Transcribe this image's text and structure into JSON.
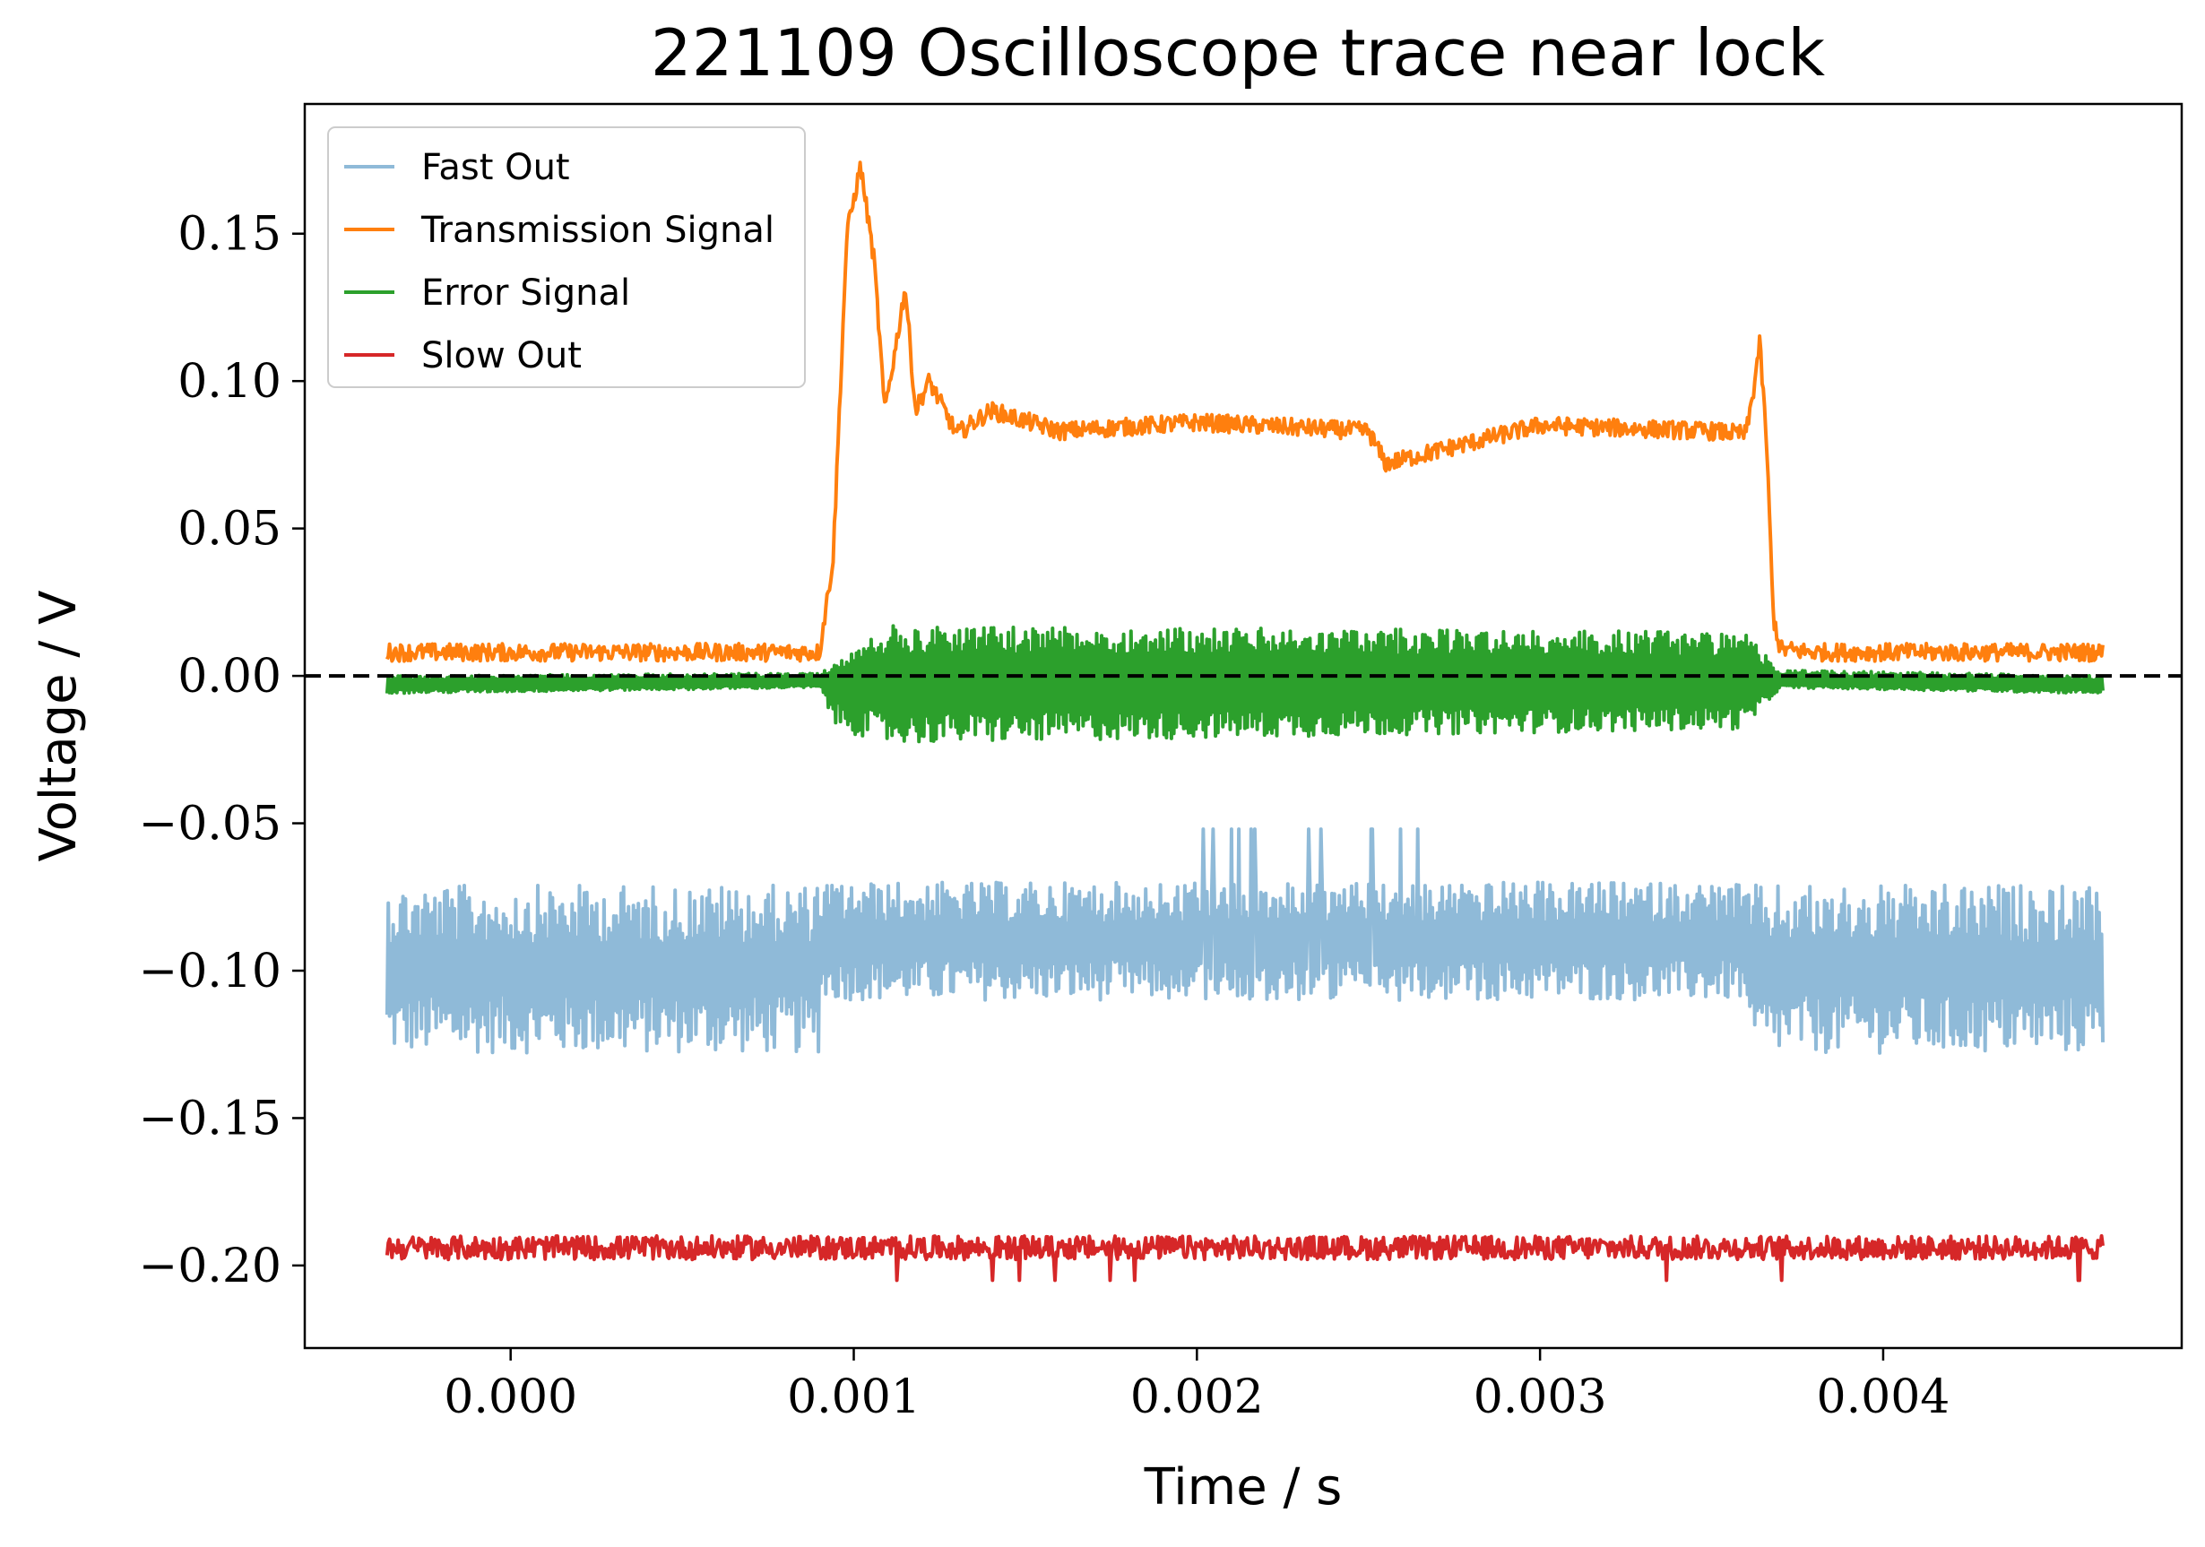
{
  "chart_data": {
    "type": "line",
    "title": "221109 Oscilloscope trace near lock",
    "xlabel": "Time / s",
    "ylabel": "Voltage / V",
    "xlim": [
      -0.0006,
      0.00487
    ],
    "ylim": [
      -0.228,
      0.194
    ],
    "xticks": [
      0.0,
      0.001,
      0.002,
      0.003,
      0.004
    ],
    "xtick_labels": [
      "0.000",
      "0.001",
      "0.002",
      "0.003",
      "0.004"
    ],
    "yticks": [
      0.15,
      0.1,
      0.05,
      0.0,
      -0.05,
      -0.1,
      -0.15,
      -0.2
    ],
    "ytick_labels": [
      "0.15",
      "0.10",
      "0.05",
      "0.00",
      "−0.05",
      "−0.10",
      "−0.15",
      "−0.20"
    ],
    "grid": false,
    "legend_position": "top-left",
    "reference_line": {
      "y": 0.0,
      "style": "dashed",
      "color": "#000000"
    },
    "series": [
      {
        "name": "Fast Out",
        "color": "#8fbad8",
        "style": "telegraph noise between about -0.128 and -0.070, with spikes to -0.052 near 0.0019-0.0028",
        "x": [
          -0.00036,
          0.0009,
          0.0009,
          0.0036,
          0.0036,
          0.00464
        ],
        "y": [
          -0.1,
          -0.1,
          -0.09,
          -0.09,
          -0.1,
          -0.1
        ],
        "band_low": [
          -0.128,
          -0.128,
          -0.11,
          -0.11,
          -0.128,
          -0.128
        ],
        "band_high": [
          -0.071,
          -0.071,
          -0.07,
          -0.07,
          -0.071,
          -0.071
        ]
      },
      {
        "name": "Transmission Signal",
        "color": "#ff7f0e",
        "x": [
          -0.00036,
          0.0009,
          0.00094,
          0.00098,
          0.00102,
          0.00106,
          0.00109,
          0.00112,
          0.00115,
          0.00118,
          0.00122,
          0.0013,
          0.0014,
          0.0016,
          0.002,
          0.0025,
          0.00255,
          0.003,
          0.0035,
          0.0036,
          0.00362,
          0.00364,
          0.00366,
          0.00368,
          0.0037,
          0.0038,
          0.00464
        ],
        "y": [
          0.008,
          0.008,
          0.04,
          0.15,
          0.173,
          0.14,
          0.09,
          0.11,
          0.132,
          0.09,
          0.1,
          0.082,
          0.09,
          0.083,
          0.086,
          0.083,
          0.072,
          0.085,
          0.083,
          0.082,
          0.095,
          0.113,
          0.08,
          0.02,
          0.009,
          0.008,
          0.008
        ]
      },
      {
        "name": "Error Signal",
        "color": "#2ca02c",
        "style": "oscillation centred near 0 with amplitude about 0.017 during lock (0.00095-0.0036)",
        "x": [
          -0.00036,
          0.0009,
          0.00095,
          0.0011,
          0.0036,
          0.0037,
          0.00464
        ],
        "y": [
          -0.003,
          -0.002,
          0.0,
          -0.002,
          -0.002,
          -0.002,
          -0.003
        ],
        "band_low": [
          -0.006,
          -0.004,
          -0.018,
          -0.023,
          -0.018,
          -0.004,
          -0.006
        ],
        "band_high": [
          0.0,
          0.001,
          0.004,
          0.017,
          0.015,
          0.002,
          0.0
        ]
      },
      {
        "name": "Slow Out",
        "color": "#d62728",
        "style": "flat with small noise between about -0.198 and -0.190, rare spikes to -0.208",
        "x": [
          -0.00036,
          0.00464
        ],
        "y": [
          -0.195,
          -0.195
        ],
        "band_low": [
          -0.198,
          -0.198
        ],
        "band_high": [
          -0.19,
          -0.19
        ]
      }
    ]
  }
}
